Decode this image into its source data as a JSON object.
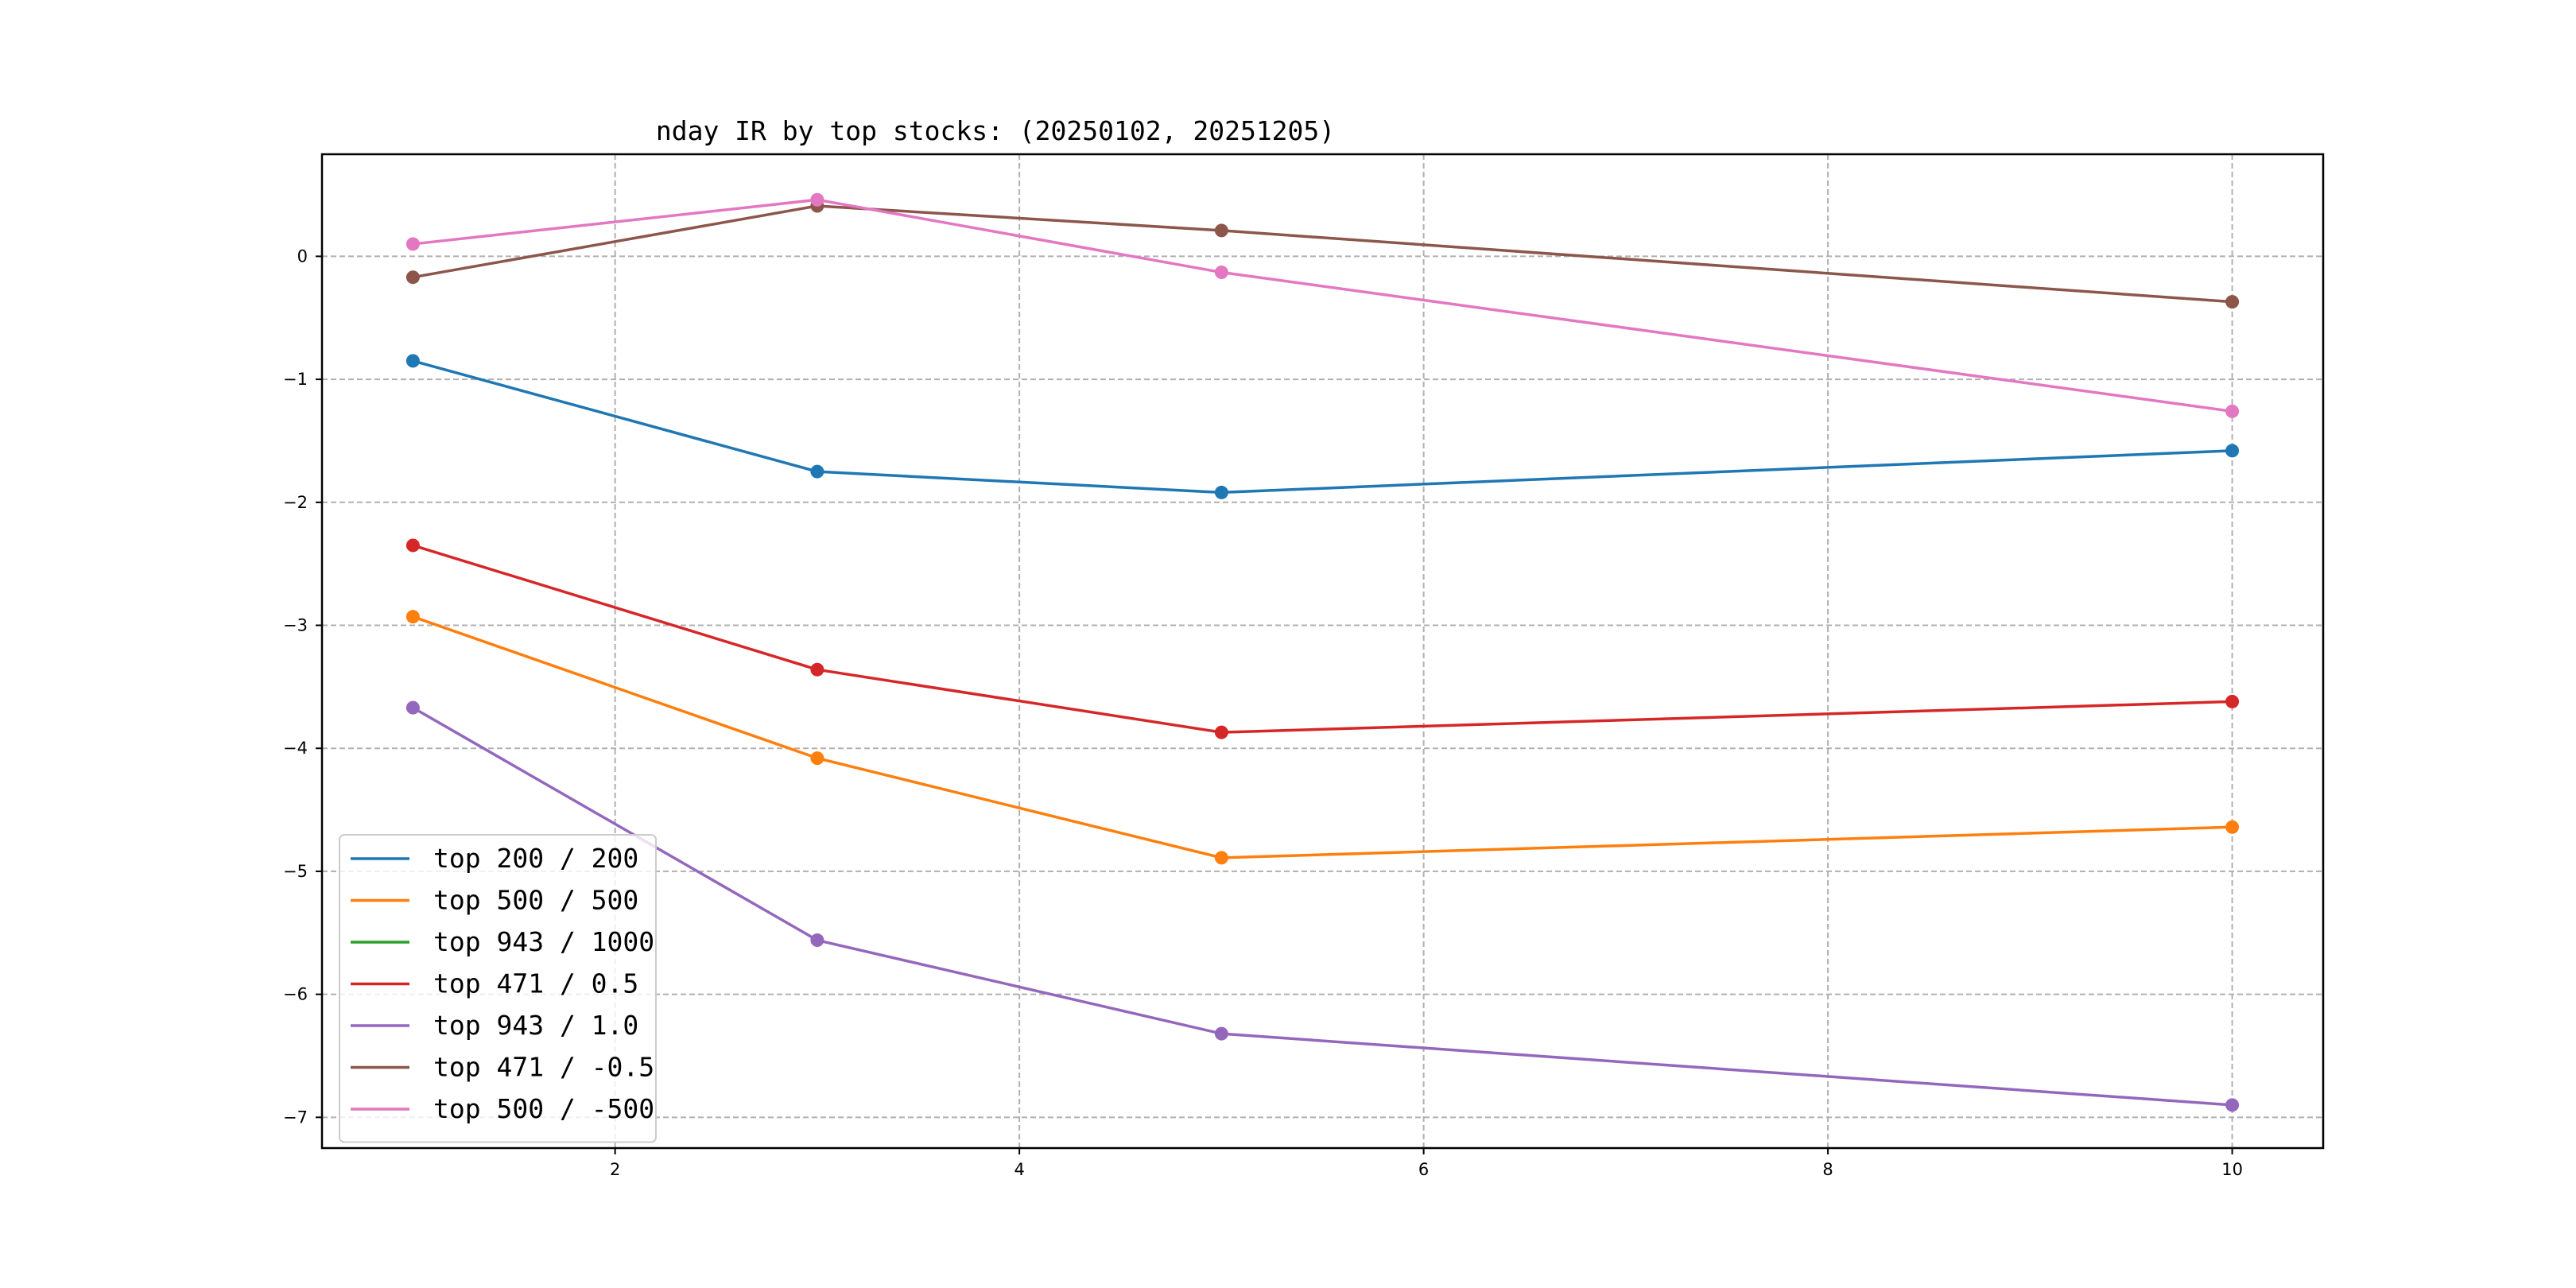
{
  "chart_data": {
    "type": "line",
    "title": "nday IR by top stocks: (20250102, 20251205)",
    "xlabel": "",
    "ylabel": "",
    "xlim": [
      0.55,
      10.45
    ],
    "ylim": [
      -7.25,
      0.83
    ],
    "xticks": [
      2,
      4,
      6,
      8,
      10
    ],
    "yticks": [
      0,
      -1,
      -2,
      -3,
      -4,
      -5,
      -6,
      -7
    ],
    "xtick_labels": [
      "2",
      "4",
      "6",
      "8",
      "10"
    ],
    "ytick_labels": [
      "0",
      "−1",
      "−2",
      "−3",
      "−4",
      "−5",
      "−6",
      "−7"
    ],
    "grid": true,
    "legend_position": "lower-left",
    "x": [
      1,
      3,
      5,
      10
    ],
    "series": [
      {
        "name": "top 200 / 200",
        "color": "#1f77b4",
        "values": [
          -0.85,
          -1.75,
          -1.92,
          -1.58
        ]
      },
      {
        "name": "top 500 / 500",
        "color": "#ff7f0e",
        "values": [
          -2.93,
          -4.08,
          -4.89,
          -4.64
        ]
      },
      {
        "name": "top 943 / 1000",
        "color": "#2ca02c",
        "values": [
          null,
          null,
          null,
          null
        ]
      },
      {
        "name": "top 471 / 0.5",
        "color": "#d62728",
        "values": [
          -2.35,
          -3.36,
          -3.87,
          -3.62
        ]
      },
      {
        "name": "top 943 / 1.0",
        "color": "#9467bd",
        "values": [
          -3.67,
          -5.56,
          -6.32,
          -6.9
        ]
      },
      {
        "name": "top 471 / -0.5",
        "color": "#8c564b",
        "values": [
          -0.17,
          0.41,
          0.21,
          -0.37
        ]
      },
      {
        "name": "top 500 / -500",
        "color": "#e377c2",
        "values": [
          0.1,
          0.46,
          -0.13,
          -1.26
        ]
      }
    ]
  }
}
